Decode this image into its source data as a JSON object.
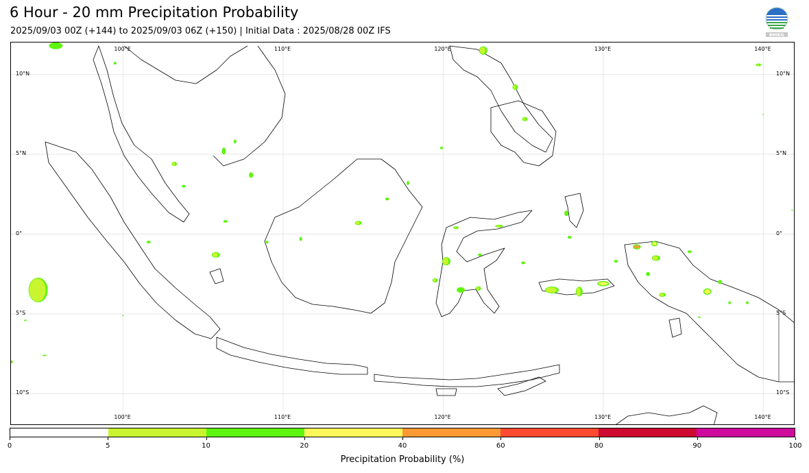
{
  "header": {
    "title": "6 Hour - 20 mm Precipitation Probability",
    "subtitle": "2025/09/03 00Z (+144) to 2025/09/03 06Z (+150) | Initial Data : 2025/08/28 00Z IFS"
  },
  "logo": {
    "icon": "bmkg-logo-icon",
    "text": "BMKG"
  },
  "map": {
    "region": "Indonesia",
    "lon_range": [
      93,
      142
    ],
    "lat_range": [
      -12,
      12
    ],
    "gridlines": true,
    "lon_ticks": [
      "100°E",
      "110°E",
      "120°E",
      "130°E",
      "140°E"
    ],
    "lat_ticks": [
      "10°N",
      "5°N",
      "0°",
      "5°S",
      "10°S"
    ]
  },
  "colorbar": {
    "label": "Precipitation Probability (%)",
    "ticks": [
      "0",
      "5",
      "10",
      "20",
      "40",
      "60",
      "80",
      "90",
      "100"
    ],
    "colors": [
      "#ffffff",
      "#c8f52f",
      "#5ef50f",
      "#fdf85a",
      "#fd9a35",
      "#fd4a30",
      "#cd0a31",
      "#cd0a9c"
    ]
  },
  "precip_areas": [
    {
      "lon": 95.8,
      "lat": 11.8,
      "rx": 10,
      "ry": 5,
      "level": "10-20"
    },
    {
      "lon": 103.2,
      "lat": 4.4,
      "rx": 4,
      "ry": 3,
      "level": "5-10"
    },
    {
      "lon": 103.8,
      "lat": 3.0,
      "rx": 3,
      "ry": 2,
      "level": "5-10"
    },
    {
      "lon": 106.3,
      "lat": 5.2,
      "rx": 3,
      "ry": 5,
      "level": "5-10"
    },
    {
      "lon": 107.0,
      "lat": 5.8,
      "rx": 2,
      "ry": 3,
      "level": "5-10"
    },
    {
      "lon": 106.4,
      "lat": 0.8,
      "rx": 3,
      "ry": 2,
      "level": "5-10"
    },
    {
      "lon": 105.8,
      "lat": -1.3,
      "rx": 6,
      "ry": 4,
      "level": "5-10"
    },
    {
      "lon": 108.0,
      "lat": 3.7,
      "rx": 3,
      "ry": 4,
      "level": "5-10"
    },
    {
      "lon": 94.7,
      "lat": -3.5,
      "rx": 14,
      "ry": 18,
      "level": "5-10"
    },
    {
      "lon": 101.6,
      "lat": -0.5,
      "rx": 3,
      "ry": 2,
      "level": "5-10"
    },
    {
      "lon": 109.0,
      "lat": -0.5,
      "rx": 2,
      "ry": 2,
      "level": "5-10"
    },
    {
      "lon": 111.1,
      "lat": -0.3,
      "rx": 2,
      "ry": 3,
      "level": "5-10"
    },
    {
      "lon": 114.7,
      "lat": 0.7,
      "rx": 5,
      "ry": 3,
      "level": "5-10"
    },
    {
      "lon": 116.5,
      "lat": 2.2,
      "rx": 3,
      "ry": 2,
      "level": "5-10"
    },
    {
      "lon": 117.8,
      "lat": 3.2,
      "rx": 2,
      "ry": 3,
      "level": "5-10"
    },
    {
      "lon": 119.9,
      "lat": 5.4,
      "rx": 2,
      "ry": 2,
      "level": "5-10"
    },
    {
      "lon": 122.5,
      "lat": 11.5,
      "rx": 6,
      "ry": 6,
      "level": "5-10"
    },
    {
      "lon": 124.5,
      "lat": 9.2,
      "rx": 4,
      "ry": 4,
      "level": "5-10"
    },
    {
      "lon": 125.1,
      "lat": 7.2,
      "rx": 4,
      "ry": 3,
      "level": "5-10"
    },
    {
      "lon": 120.8,
      "lat": 0.4,
      "rx": 4,
      "ry": 2,
      "level": "5-10"
    },
    {
      "lon": 123.5,
      "lat": 0.5,
      "rx": 6,
      "ry": 2,
      "level": "5-10"
    },
    {
      "lon": 120.2,
      "lat": -1.7,
      "rx": 6,
      "ry": 6,
      "level": "5-10"
    },
    {
      "lon": 119.5,
      "lat": -2.9,
      "rx": 4,
      "ry": 3,
      "level": "5-10"
    },
    {
      "lon": 121.1,
      "lat": -3.5,
      "rx": 6,
      "ry": 4,
      "level": "10-20"
    },
    {
      "lon": 122.2,
      "lat": -3.4,
      "rx": 4,
      "ry": 3,
      "level": "5-10"
    },
    {
      "lon": 122.3,
      "lat": -1.3,
      "rx": 3,
      "ry": 2,
      "level": "5-10"
    },
    {
      "lon": 125.0,
      "lat": -1.8,
      "rx": 3,
      "ry": 2,
      "level": "5-10"
    },
    {
      "lon": 127.7,
      "lat": 1.3,
      "rx": 3,
      "ry": 4,
      "level": "5-10"
    },
    {
      "lon": 127.9,
      "lat": -0.2,
      "rx": 3,
      "ry": 2,
      "level": "5-10"
    },
    {
      "lon": 126.8,
      "lat": -3.5,
      "rx": 10,
      "ry": 5,
      "level": "5-10"
    },
    {
      "lon": 128.5,
      "lat": -3.6,
      "rx": 5,
      "ry": 7,
      "level": "5-10"
    },
    {
      "lon": 130.0,
      "lat": -3.1,
      "rx": 8,
      "ry": 3,
      "level": "20-40"
    },
    {
      "lon": 130.8,
      "lat": -1.7,
      "rx": 3,
      "ry": 2,
      "level": "5-10"
    },
    {
      "lon": 132.1,
      "lat": -0.8,
      "rx": 5,
      "ry": 3,
      "level": "40-60"
    },
    {
      "lon": 133.2,
      "lat": -0.6,
      "rx": 4,
      "ry": 3,
      "level": "20-40"
    },
    {
      "lon": 133.3,
      "lat": -1.5,
      "rx": 6,
      "ry": 4,
      "level": "5-10"
    },
    {
      "lon": 132.8,
      "lat": -2.5,
      "rx": 3,
      "ry": 3,
      "level": "5-10"
    },
    {
      "lon": 133.7,
      "lat": -3.8,
      "rx": 5,
      "ry": 3,
      "level": "5-10"
    },
    {
      "lon": 135.4,
      "lat": -1.1,
      "rx": 3,
      "ry": 2,
      "level": "5-10"
    },
    {
      "lon": 136.5,
      "lat": -3.6,
      "rx": 5,
      "ry": 4,
      "level": "20-40"
    },
    {
      "lon": 137.3,
      "lat": -3.0,
      "rx": 3,
      "ry": 3,
      "level": "5-10"
    },
    {
      "lon": 137.9,
      "lat": -4.3,
      "rx": 2,
      "ry": 2,
      "level": "5-10"
    },
    {
      "lon": 139.0,
      "lat": -4.3,
      "rx": 2,
      "ry": 2,
      "level": "5-10"
    },
    {
      "lon": 136.0,
      "lat": -5.2,
      "rx": 2,
      "ry": 1,
      "level": "5-10"
    },
    {
      "lon": 139.7,
      "lat": 10.6,
      "rx": 4,
      "ry": 2,
      "level": "5-10"
    },
    {
      "lon": 140.0,
      "lat": 7.5,
      "rx": 1,
      "ry": 1,
      "level": "5-10"
    },
    {
      "lon": 141.8,
      "lat": 1.5,
      "rx": 1,
      "ry": 1,
      "level": "5-10"
    },
    {
      "lon": 93.0,
      "lat": -8.0,
      "rx": 3,
      "ry": 2,
      "level": "5-10"
    },
    {
      "lon": 95.1,
      "lat": -7.6,
      "rx": 3,
      "ry": 1,
      "level": "5-10"
    },
    {
      "lon": 93.9,
      "lat": -5.4,
      "rx": 2,
      "ry": 1,
      "level": "5-10"
    },
    {
      "lon": 100.0,
      "lat": -5.1,
      "rx": 1,
      "ry": 1,
      "level": "5-10"
    },
    {
      "lon": 99.5,
      "lat": 10.7,
      "rx": 2,
      "ry": 2,
      "level": "5-10"
    }
  ]
}
